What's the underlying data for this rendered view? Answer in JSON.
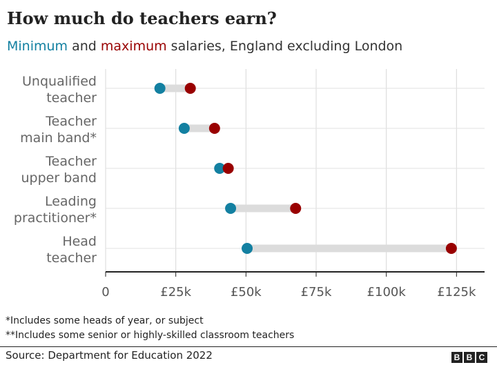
{
  "header": {
    "title": "How much do teachers earn?",
    "subtitle_min": "Minimum",
    "subtitle_and": " and ",
    "subtitle_max": "maximum",
    "subtitle_rest": " salaries, England excluding London"
  },
  "chart_data": {
    "type": "dumbbell",
    "title": "How much do teachers earn?",
    "subtitle": "Minimum and maximum salaries, England excluding London",
    "categories": [
      [
        "Unqualified",
        "teacher"
      ],
      [
        "Teacher",
        "main band*"
      ],
      [
        "Teacher",
        "upper band"
      ],
      [
        "Leading",
        "practitioner*"
      ],
      [
        "Head",
        "teacher"
      ]
    ],
    "series": [
      {
        "name": "Minimum",
        "color": "#1380a1",
        "values": [
          19340,
          28000,
          40625,
          44523,
          50417
        ]
      },
      {
        "name": "maximum",
        "color": "#990000",
        "values": [
          30172,
          38810,
          43685,
          67685,
          123164
        ]
      }
    ],
    "xlim": [
      0,
      135000
    ],
    "x_ticks": [
      0,
      25000,
      50000,
      75000,
      100000,
      125000
    ],
    "x_tick_labels": [
      "0",
      "£25k",
      "£50k",
      "£75k",
      "£100k",
      "£125k"
    ],
    "grid": true,
    "connector_color": "#dcdcdc"
  },
  "footnotes": [
    "*Includes some heads of year, or subject",
    "**Includes some senior or highly-skilled classroom teachers"
  ],
  "source": "Source: Department for Education 2022",
  "logo": [
    "B",
    "B",
    "C"
  ]
}
